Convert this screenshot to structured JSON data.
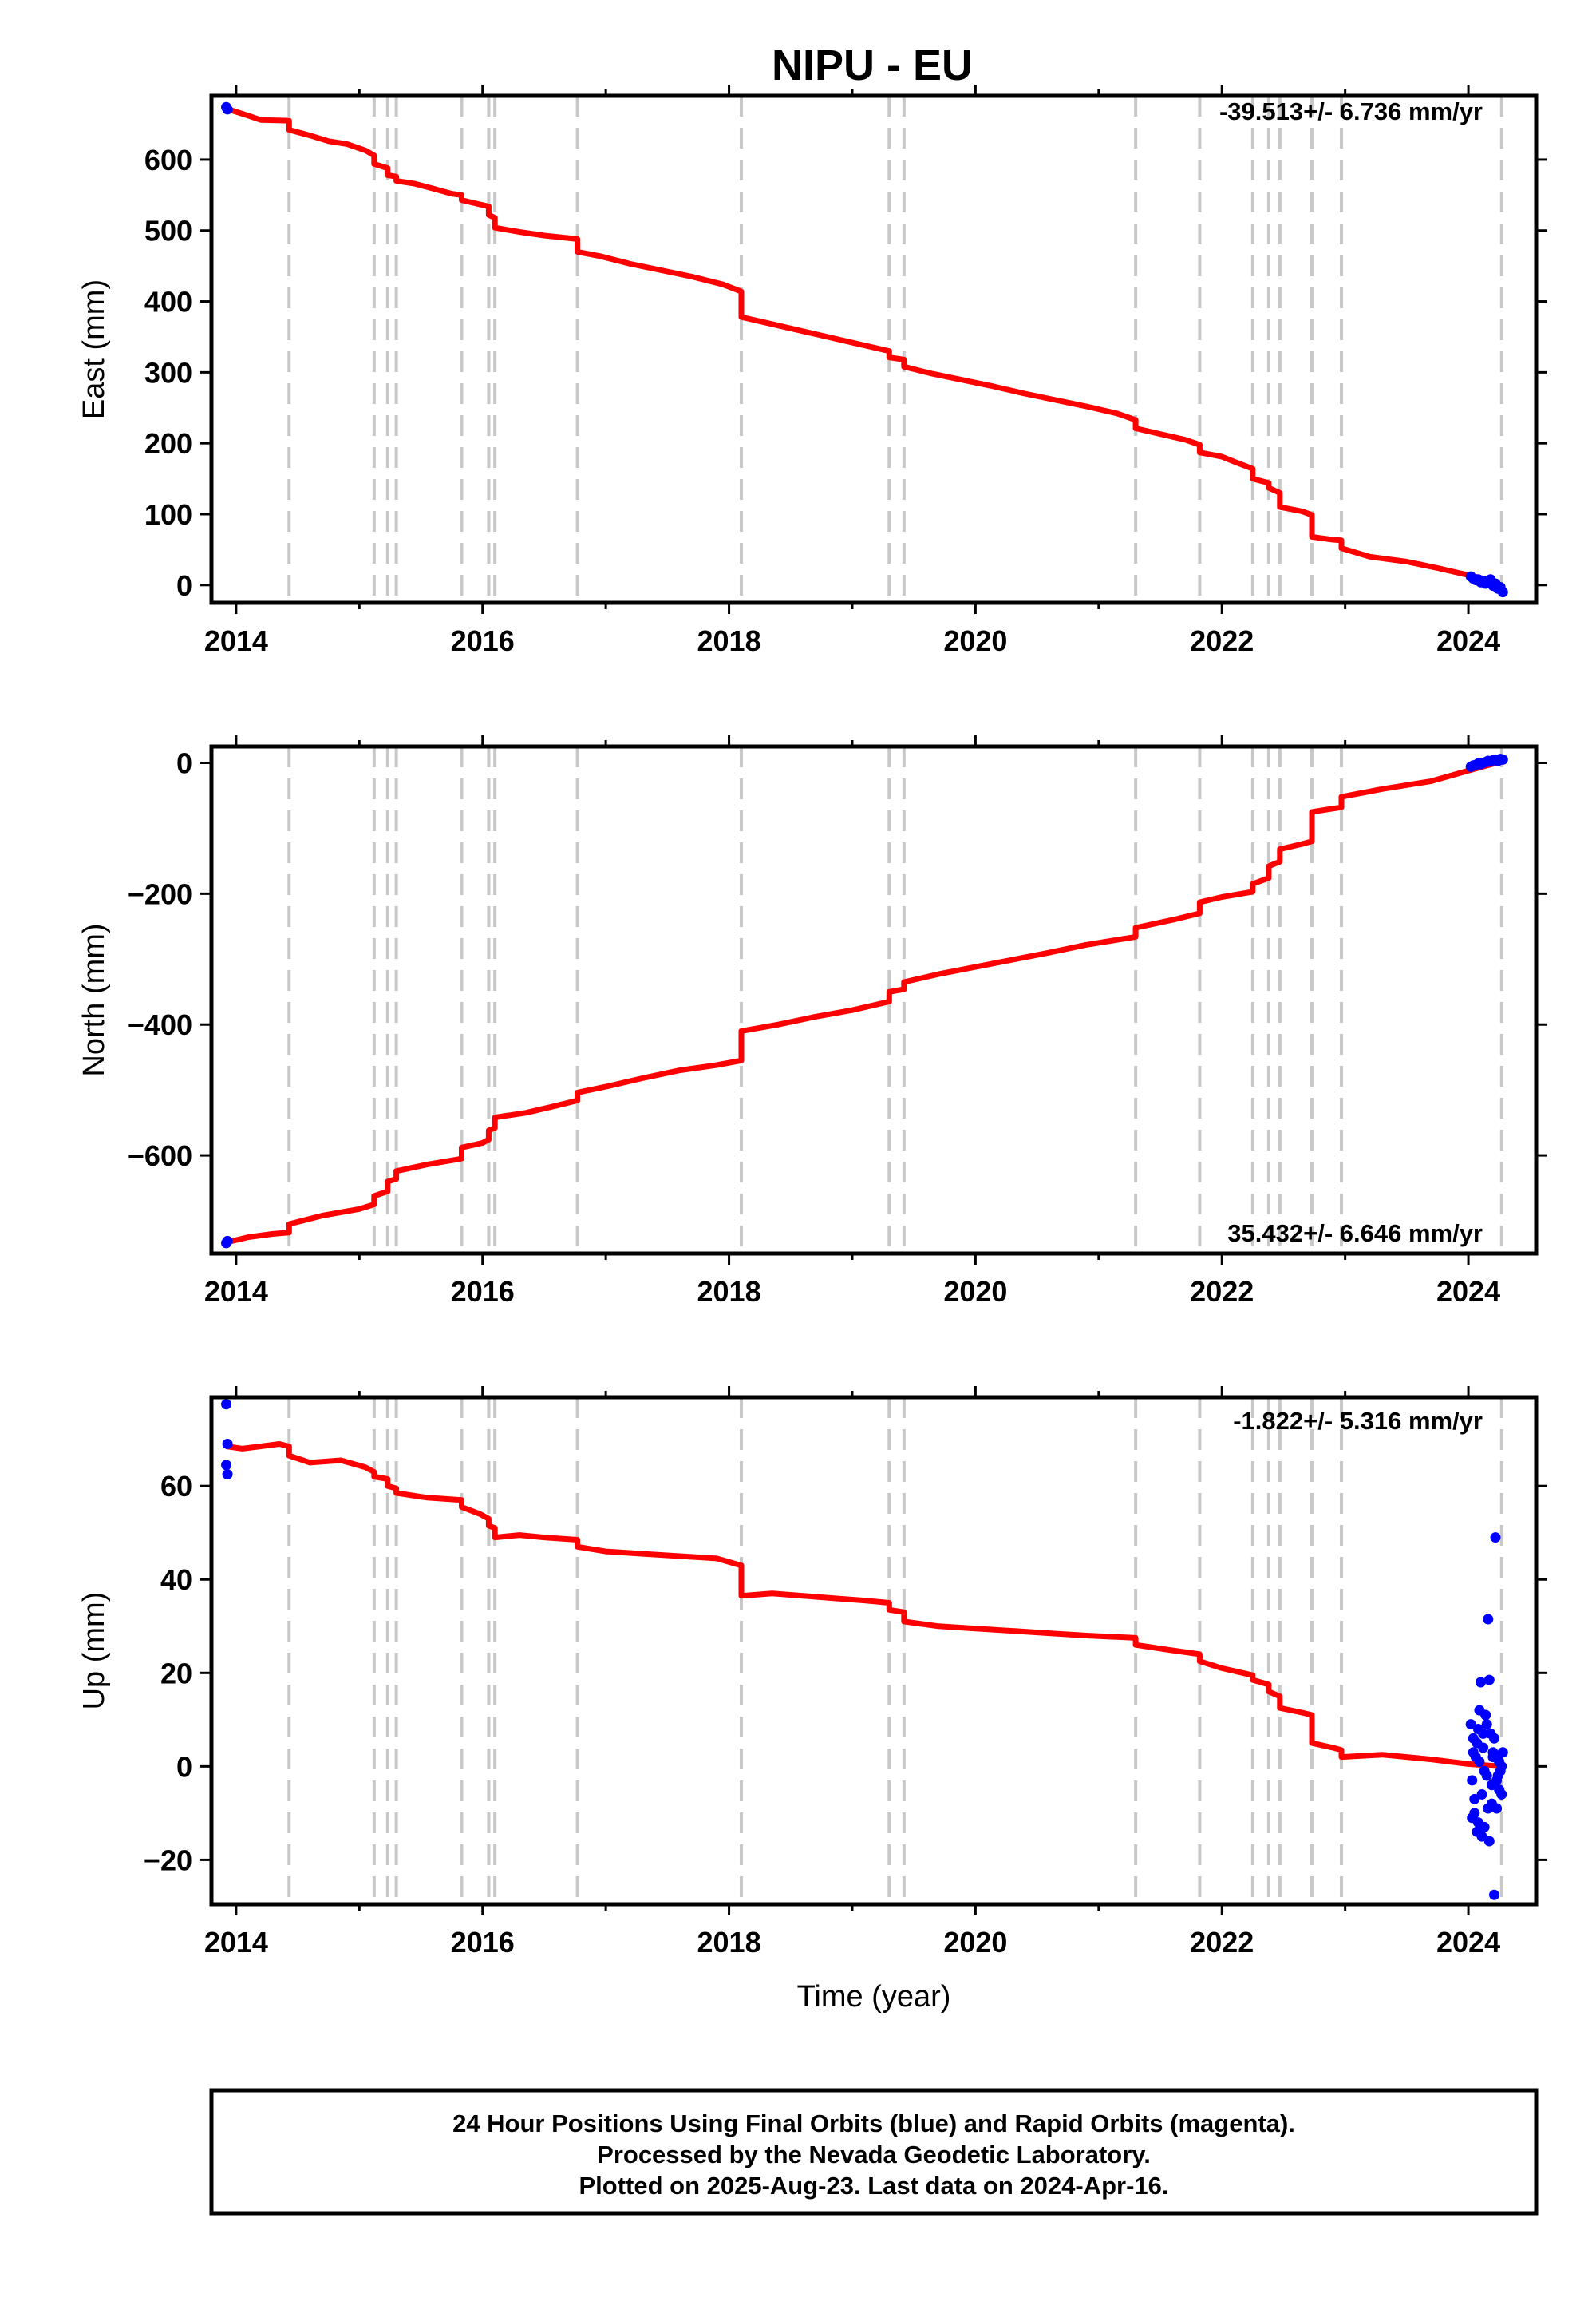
{
  "title": "NIPU - EU",
  "footer": {
    "lines": [
      "24 Hour Positions Using Final Orbits (blue) and Rapid Orbits (magenta).",
      "Processed by the Nevada Geodetic Laboratory.",
      "Plotted on 2025-Aug-23. Last data on 2024-Apr-16."
    ]
  },
  "colors": {
    "model": "#ff0000",
    "final_orbits": "#0000ff",
    "event_lines": "#c8c8c8",
    "frame": "#000000"
  },
  "chart_data": [
    {
      "type": "line",
      "panel": "east",
      "xlabel": "",
      "ylabel": "East (mm)",
      "xlim": [
        2013.8,
        2024.55
      ],
      "ylim": [
        -25,
        690
      ],
      "xticks": [
        "2014",
        "2016",
        "2018",
        "2020",
        "2022",
        "2024"
      ],
      "yticks": [
        "0",
        "100",
        "200",
        "300",
        "400",
        "500",
        "600"
      ],
      "rate": "-39.513+/- 6.736 mm/yr",
      "event_lines": [
        2014.43,
        2015.12,
        2015.23,
        2015.3,
        2015.83,
        2016.05,
        2016.1,
        2016.77,
        2018.1,
        2019.3,
        2019.42,
        2021.3,
        2021.82,
        2022.25,
        2022.38,
        2022.47,
        2022.73,
        2022.97,
        2024.27
      ],
      "series": [
        {
          "label": "model",
          "x": [
            2013.92,
            2014.1,
            2014.2,
            2014.43,
            2014.43,
            2014.6,
            2014.75,
            2014.9,
            2015.05,
            2015.12,
            2015.12,
            2015.23,
            2015.23,
            2015.3,
            2015.3,
            2015.45,
            2015.6,
            2015.75,
            2015.83,
            2015.83,
            2015.95,
            2016.05,
            2016.05,
            2016.1,
            2016.1,
            2016.3,
            2016.5,
            2016.77,
            2016.77,
            2016.95,
            2017.2,
            2017.45,
            2017.7,
            2017.95,
            2018.1,
            2018.1,
            2018.3,
            2018.5,
            2018.7,
            2018.9,
            2019.1,
            2019.3,
            2019.3,
            2019.42,
            2019.42,
            2019.65,
            2019.9,
            2020.15,
            2020.4,
            2020.65,
            2020.9,
            2021.15,
            2021.3,
            2021.3,
            2021.5,
            2021.7,
            2021.82,
            2021.82,
            2022.0,
            2022.1,
            2022.25,
            2022.25,
            2022.38,
            2022.38,
            2022.47,
            2022.47,
            2022.65,
            2022.73,
            2022.73,
            2022.9,
            2022.97,
            2022.97,
            2023.2,
            2023.5,
            2023.75,
            2024.0,
            2024.15,
            2024.27
          ],
          "y": [
            672,
            662,
            656,
            655,
            642,
            634,
            626,
            622,
            613,
            606,
            594,
            588,
            578,
            576,
            570,
            566,
            559,
            552,
            550,
            543,
            538,
            534,
            522,
            518,
            504,
            498,
            493,
            488,
            470,
            464,
            453,
            444,
            435,
            424,
            414,
            378,
            370,
            362,
            354,
            346,
            338,
            330,
            321,
            318,
            308,
            298,
            289,
            280,
            270,
            261,
            252,
            242,
            233,
            221,
            213,
            205,
            198,
            187,
            181,
            174,
            164,
            150,
            144,
            137,
            130,
            110,
            104,
            99,
            68,
            64,
            63,
            52,
            40,
            33,
            24,
            14,
            8,
            -2
          ]
        },
        {
          "label": "final_orbits",
          "x": [
            2013.92,
            2013.93,
            2024.02,
            2024.04,
            2024.06,
            2024.08,
            2024.1,
            2024.12,
            2024.14,
            2024.16,
            2024.18,
            2024.2,
            2024.22,
            2024.24,
            2024.26,
            2024.28
          ],
          "y": [
            674,
            671,
            12,
            9,
            7,
            8,
            4,
            6,
            2,
            3,
            8,
            -1,
            2,
            -5,
            -3,
            -10
          ]
        }
      ]
    },
    {
      "type": "line",
      "panel": "north",
      "xlabel": "",
      "ylabel": "North (mm)",
      "xlim": [
        2013.8,
        2024.55
      ],
      "ylim": [
        -750,
        25
      ],
      "xticks": [
        "2014",
        "2016",
        "2018",
        "2020",
        "2022",
        "2024"
      ],
      "yticks": [
        "0",
        "−200",
        "−400",
        "−600"
      ],
      "rate": "35.432+/- 6.646 mm/yr",
      "event_lines": [
        2014.43,
        2015.12,
        2015.23,
        2015.3,
        2015.83,
        2016.05,
        2016.1,
        2016.77,
        2018.1,
        2019.3,
        2019.42,
        2021.3,
        2021.82,
        2022.25,
        2022.38,
        2022.47,
        2022.73,
        2022.97,
        2024.27
      ],
      "series": [
        {
          "label": "model",
          "x": [
            2013.92,
            2014.1,
            2014.3,
            2014.43,
            2014.43,
            2014.7,
            2015.0,
            2015.12,
            2015.12,
            2015.23,
            2015.23,
            2015.3,
            2015.3,
            2015.55,
            2015.83,
            2015.83,
            2016.0,
            2016.05,
            2016.05,
            2016.1,
            2016.1,
            2016.35,
            2016.6,
            2016.77,
            2016.77,
            2017.0,
            2017.3,
            2017.6,
            2017.9,
            2018.1,
            2018.1,
            2018.4,
            2018.7,
            2019.0,
            2019.3,
            2019.3,
            2019.42,
            2019.42,
            2019.7,
            2020.0,
            2020.3,
            2020.6,
            2020.9,
            2021.3,
            2021.3,
            2021.6,
            2021.82,
            2021.82,
            2022.0,
            2022.25,
            2022.25,
            2022.38,
            2022.38,
            2022.47,
            2022.47,
            2022.65,
            2022.73,
            2022.73,
            2022.9,
            2022.97,
            2022.97,
            2023.3,
            2023.7,
            2024.0,
            2024.27
          ],
          "y": [
            -733,
            -725,
            -720,
            -718,
            -705,
            -692,
            -682,
            -675,
            -662,
            -655,
            -640,
            -636,
            -624,
            -614,
            -605,
            -588,
            -581,
            -576,
            -562,
            -558,
            -542,
            -535,
            -524,
            -516,
            -504,
            -495,
            -482,
            -470,
            -462,
            -455,
            -410,
            -400,
            -388,
            -378,
            -365,
            -350,
            -346,
            -335,
            -323,
            -312,
            -301,
            -290,
            -278,
            -266,
            -252,
            -240,
            -230,
            -213,
            -205,
            -197,
            -185,
            -176,
            -158,
            -151,
            -132,
            -124,
            -120,
            -75,
            -70,
            -68,
            -52,
            -40,
            -28,
            -12,
            2
          ]
        },
        {
          "label": "final_orbits",
          "x": [
            2013.92,
            2013.93,
            2024.02,
            2024.04,
            2024.06,
            2024.08,
            2024.1,
            2024.12,
            2024.14,
            2024.16,
            2024.18,
            2024.2,
            2024.22,
            2024.24,
            2024.26,
            2024.28
          ],
          "y": [
            -734,
            -731,
            -6,
            -4,
            -3,
            -1,
            -2,
            0,
            1,
            3,
            2,
            4,
            5,
            3,
            6,
            5
          ]
        }
      ]
    },
    {
      "type": "scatter",
      "panel": "up",
      "xlabel": "Time (year)",
      "ylabel": "Up (mm)",
      "xlim": [
        2013.8,
        2024.55
      ],
      "ylim": [
        -29.5,
        79
      ],
      "xticks": [
        "2014",
        "2016",
        "2018",
        "2020",
        "2022",
        "2024"
      ],
      "yticks": [
        "−20",
        "0",
        "20",
        "40",
        "60"
      ],
      "rate": "-1.822+/- 5.316 mm/yr",
      "event_lines": [
        2014.43,
        2015.12,
        2015.23,
        2015.3,
        2015.83,
        2016.05,
        2016.1,
        2016.77,
        2018.1,
        2019.3,
        2019.42,
        2021.3,
        2021.82,
        2022.25,
        2022.38,
        2022.47,
        2022.73,
        2022.97,
        2024.27
      ],
      "series": [
        {
          "label": "model",
          "x": [
            2013.92,
            2014.05,
            2014.2,
            2014.35,
            2014.43,
            2014.43,
            2014.6,
            2014.85,
            2015.05,
            2015.12,
            2015.12,
            2015.23,
            2015.23,
            2015.3,
            2015.3,
            2015.55,
            2015.83,
            2015.83,
            2015.98,
            2016.05,
            2016.05,
            2016.1,
            2016.1,
            2016.3,
            2016.5,
            2016.77,
            2016.77,
            2017.0,
            2017.3,
            2017.6,
            2017.9,
            2018.1,
            2018.1,
            2018.35,
            2018.6,
            2018.85,
            2019.1,
            2019.3,
            2019.3,
            2019.42,
            2019.42,
            2019.7,
            2020.0,
            2020.3,
            2020.6,
            2020.9,
            2021.3,
            2021.3,
            2021.55,
            2021.82,
            2021.82,
            2022.0,
            2022.25,
            2022.25,
            2022.38,
            2022.38,
            2022.47,
            2022.47,
            2022.65,
            2022.73,
            2022.73,
            2022.9,
            2022.97,
            2022.97,
            2023.3,
            2023.7,
            2024.0,
            2024.27
          ],
          "y": [
            68.5,
            68,
            68.5,
            69,
            68.5,
            66.5,
            65,
            65.5,
            64,
            63,
            62,
            61.5,
            60,
            59.5,
            58.5,
            57.5,
            57,
            55.5,
            54,
            53,
            51.5,
            51,
            49,
            49.5,
            49,
            48.5,
            47,
            46,
            45.5,
            45,
            44.5,
            43,
            36.5,
            37,
            36.5,
            36,
            35.5,
            35,
            33.5,
            33,
            31,
            30,
            29.5,
            29,
            28.5,
            28,
            27.5,
            26,
            25,
            24,
            22.5,
            21,
            19.5,
            18.5,
            17.5,
            16,
            15,
            12.5,
            11.5,
            11,
            5,
            4,
            3.5,
            2,
            2.5,
            1.5,
            0.5,
            0
          ]
        },
        {
          "label": "final_orbits",
          "x": [
            2013.92,
            2013.93,
            2013.92,
            2013.93,
            2024.02,
            2024.03,
            2024.04,
            2024.05,
            2024.06,
            2024.07,
            2024.08,
            2024.09,
            2024.1,
            2024.11,
            2024.12,
            2024.13,
            2024.14,
            2024.15,
            2024.16,
            2024.17,
            2024.18,
            2024.19,
            2024.2,
            2024.21,
            2024.22,
            2024.23,
            2024.24,
            2024.25,
            2024.26,
            2024.27,
            2024.28,
            2024.03,
            2024.05,
            2024.07,
            2024.09,
            2024.11,
            2024.13,
            2024.15,
            2024.17,
            2024.19,
            2024.21,
            2024.23,
            2024.25,
            2024.27,
            2024.04,
            2024.08,
            2024.12,
            2024.16,
            2024.2,
            2024.24
          ],
          "y": [
            77.5,
            69,
            64.5,
            62.5,
            9,
            -3,
            6,
            -10,
            2,
            -14,
            8,
            1,
            18,
            -6,
            4,
            -13,
            11,
            -2,
            31.5,
            -16,
            7,
            -4,
            3,
            -27.5,
            49,
            -9,
            2,
            -5,
            -1,
            0,
            3,
            -11,
            -7,
            5,
            12,
            -15,
            -1,
            9,
            18.5,
            -8,
            6,
            -3,
            1,
            -6,
            3,
            -12,
            7,
            -9,
            2,
            -2
          ]
        }
      ]
    }
  ]
}
